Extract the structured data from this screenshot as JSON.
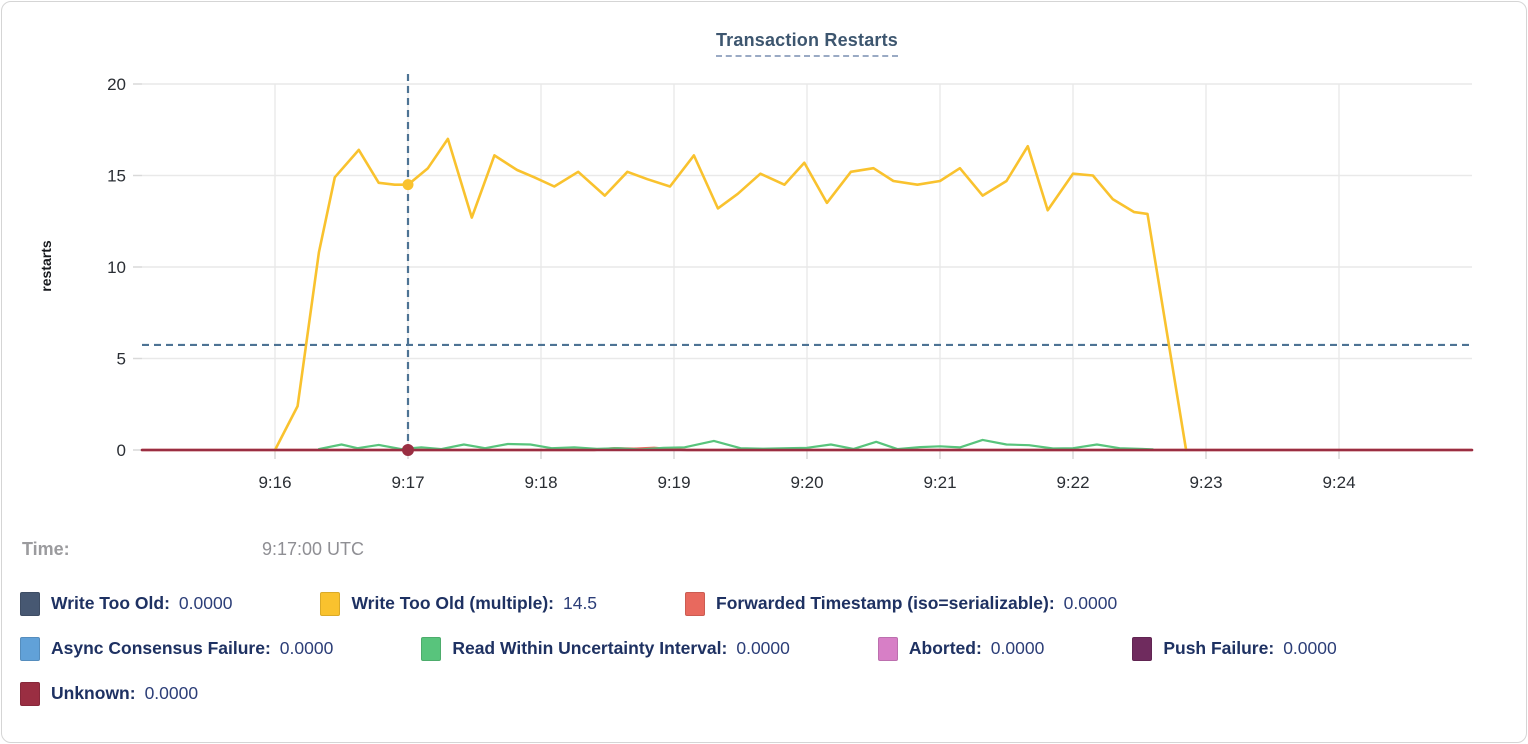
{
  "title": "Transaction Restarts",
  "y_axis_label": "restarts",
  "tooltip": {
    "time_label": "Time:",
    "time_value": "9:17:00 UTC"
  },
  "legend": [
    {
      "label": "Write Too Old:",
      "value": "0.0000",
      "color": "#475872"
    },
    {
      "label": "Write Too Old (multiple):",
      "value": "14.5",
      "color": "#F9C22E"
    },
    {
      "label": "Forwarded Timestamp (iso=serializable):",
      "value": "0.0000",
      "color": "#E8695E"
    },
    {
      "label": "Async Consensus Failure:",
      "value": "0.0000",
      "color": "#61A1D8"
    },
    {
      "label": "Read Within Uncertainty Interval:",
      "value": "0.0000",
      "color": "#58C47C"
    },
    {
      "label": "Aborted:",
      "value": "0.0000",
      "color": "#D77FC6"
    },
    {
      "label": "Push Failure:",
      "value": "0.0000",
      "color": "#6F2B5E"
    },
    {
      "label": "Unknown:",
      "value": "0.0000",
      "color": "#9A2E42"
    }
  ],
  "chart_data": {
    "type": "line",
    "title": "Transaction Restarts",
    "xlabel": "",
    "ylabel": "restarts",
    "ylim": [
      0,
      20
    ],
    "yticks": [
      0,
      5,
      10,
      15,
      20
    ],
    "x_domain_minutes": [
      15,
      25
    ],
    "x_tick_minutes": [
      16,
      17,
      18,
      19,
      20,
      21,
      22,
      23,
      24
    ],
    "x_tick_labels": [
      "9:16",
      "9:17",
      "9:18",
      "9:19",
      "9:20",
      "9:21",
      "9:22",
      "9:23",
      "9:24"
    ],
    "grid": true,
    "legend_position": "bottom",
    "crosshair": {
      "x_minute": 17,
      "y_value": 5.74,
      "time": "9:17:00 UTC"
    },
    "hover_points": [
      {
        "series_index": 1,
        "value": 14.5,
        "radius": 5.5
      },
      {
        "series_index": 7,
        "value": 0,
        "radius": 6
      }
    ],
    "series": [
      {
        "name": "Write Too Old",
        "color": "#475872",
        "stroke_width": 2,
        "points": [
          [
            15,
            0
          ],
          [
            25,
            0
          ]
        ]
      },
      {
        "name": "Write Too Old (multiple)",
        "color": "#F9C22E",
        "stroke_width": 2.6,
        "points": [
          [
            16.0,
            0
          ],
          [
            16.17,
            2.4
          ],
          [
            16.33,
            10.8
          ],
          [
            16.45,
            14.9
          ],
          [
            16.63,
            16.4
          ],
          [
            16.78,
            14.6
          ],
          [
            16.9,
            14.5
          ],
          [
            17.0,
            14.5
          ],
          [
            17.15,
            15.4
          ],
          [
            17.3,
            17.0
          ],
          [
            17.48,
            12.7
          ],
          [
            17.65,
            16.1
          ],
          [
            17.82,
            15.3
          ],
          [
            17.95,
            14.9
          ],
          [
            18.1,
            14.4
          ],
          [
            18.28,
            15.2
          ],
          [
            18.48,
            13.9
          ],
          [
            18.65,
            15.2
          ],
          [
            18.8,
            14.8
          ],
          [
            18.97,
            14.4
          ],
          [
            19.15,
            16.1
          ],
          [
            19.33,
            13.2
          ],
          [
            19.48,
            14.0
          ],
          [
            19.65,
            15.1
          ],
          [
            19.83,
            14.5
          ],
          [
            19.98,
            15.7
          ],
          [
            20.15,
            13.5
          ],
          [
            20.33,
            15.2
          ],
          [
            20.5,
            15.4
          ],
          [
            20.65,
            14.7
          ],
          [
            20.83,
            14.5
          ],
          [
            21.0,
            14.7
          ],
          [
            21.15,
            15.4
          ],
          [
            21.32,
            13.9
          ],
          [
            21.5,
            14.7
          ],
          [
            21.66,
            16.6
          ],
          [
            21.81,
            13.1
          ],
          [
            22.0,
            15.1
          ],
          [
            22.15,
            15.0
          ],
          [
            22.3,
            13.7
          ],
          [
            22.46,
            13.0
          ],
          [
            22.56,
            12.9
          ],
          [
            22.85,
            0
          ]
        ]
      },
      {
        "name": "Forwarded Timestamp (iso=serializable)",
        "color": "#E8695E",
        "stroke_width": 2.4,
        "points": [
          [
            15,
            0
          ],
          [
            18.4,
            0
          ],
          [
            18.55,
            0.1
          ],
          [
            18.7,
            0.07
          ],
          [
            18.85,
            0.12
          ],
          [
            19.0,
            0.03
          ],
          [
            19.1,
            0
          ],
          [
            25,
            0
          ]
        ]
      },
      {
        "name": "Async Consensus Failure",
        "color": "#61A1D8",
        "stroke_width": 2,
        "points": [
          [
            15,
            0
          ],
          [
            25,
            0
          ]
        ]
      },
      {
        "name": "Read Within Uncertainty Interval",
        "color": "#58C47C",
        "stroke_width": 2.2,
        "points": [
          [
            16.33,
            0.05
          ],
          [
            16.5,
            0.3
          ],
          [
            16.62,
            0.1
          ],
          [
            16.78,
            0.28
          ],
          [
            16.95,
            0.05
          ],
          [
            17.1,
            0.15
          ],
          [
            17.25,
            0.05
          ],
          [
            17.42,
            0.3
          ],
          [
            17.58,
            0.1
          ],
          [
            17.75,
            0.33
          ],
          [
            17.92,
            0.3
          ],
          [
            18.08,
            0.1
          ],
          [
            18.25,
            0.15
          ],
          [
            18.42,
            0.06
          ],
          [
            18.58,
            0.1
          ],
          [
            18.75,
            0.03
          ],
          [
            18.92,
            0.12
          ],
          [
            19.08,
            0.15
          ],
          [
            19.3,
            0.5
          ],
          [
            19.5,
            0.1
          ],
          [
            19.67,
            0.07
          ],
          [
            19.85,
            0.1
          ],
          [
            20.0,
            0.12
          ],
          [
            20.18,
            0.3
          ],
          [
            20.35,
            0.06
          ],
          [
            20.52,
            0.45
          ],
          [
            20.68,
            0.05
          ],
          [
            20.85,
            0.16
          ],
          [
            21.0,
            0.2
          ],
          [
            21.15,
            0.14
          ],
          [
            21.32,
            0.55
          ],
          [
            21.5,
            0.3
          ],
          [
            21.67,
            0.26
          ],
          [
            21.85,
            0.08
          ],
          [
            22.0,
            0.1
          ],
          [
            22.18,
            0.3
          ],
          [
            22.35,
            0.1
          ],
          [
            22.6,
            0.04
          ]
        ]
      },
      {
        "name": "Aborted",
        "color": "#D77FC6",
        "stroke_width": 2,
        "points": [
          [
            15,
            0
          ],
          [
            25,
            0
          ]
        ]
      },
      {
        "name": "Push Failure",
        "color": "#6F2B5E",
        "stroke_width": 2,
        "points": [
          [
            15,
            0
          ],
          [
            25,
            0
          ]
        ]
      },
      {
        "name": "Unknown",
        "color": "#9A2E42",
        "stroke_width": 2.6,
        "points": [
          [
            15,
            0
          ],
          [
            25,
            0
          ]
        ]
      }
    ]
  }
}
